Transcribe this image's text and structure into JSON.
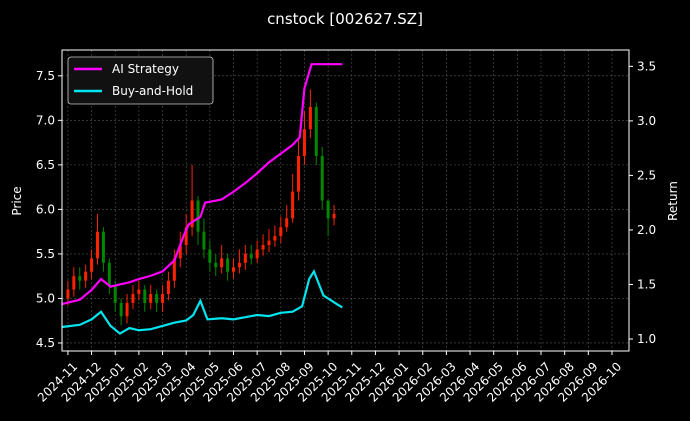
{
  "chart_data": {
    "type": "candlestick",
    "title": "cnstock [002627.SZ]",
    "ylabel": "Price",
    "y2label": "Return",
    "grid": true,
    "legend": "upper left",
    "up_color": "#ff2200",
    "down_color": "#008800",
    "xlim": [
      -0.25,
      23.72
    ],
    "xticks": [
      {
        "value": 0,
        "label": "2024-11"
      },
      {
        "value": 1,
        "label": "2024-12"
      },
      {
        "value": 2,
        "label": "2025-01"
      },
      {
        "value": 3,
        "label": "2025-02"
      },
      {
        "value": 4,
        "label": "2025-03"
      },
      {
        "value": 5,
        "label": "2025-04"
      },
      {
        "value": 6,
        "label": "2025-05"
      },
      {
        "value": 7,
        "label": "2025-06"
      },
      {
        "value": 8,
        "label": "2025-07"
      },
      {
        "value": 9,
        "label": "2025-08"
      },
      {
        "value": 10,
        "label": "2025-09"
      },
      {
        "value": 11,
        "label": "2025-10"
      },
      {
        "value": 12,
        "label": "2025-11"
      },
      {
        "value": 13,
        "label": "2025-12"
      },
      {
        "value": 14,
        "label": "2026-01"
      },
      {
        "value": 15,
        "label": "2026-02"
      },
      {
        "value": 16,
        "label": "2026-03"
      },
      {
        "value": 17,
        "label": "2026-04"
      },
      {
        "value": 18,
        "label": "2026-05"
      },
      {
        "value": 19,
        "label": "2026-06"
      },
      {
        "value": 20,
        "label": "2026-07"
      },
      {
        "value": 21,
        "label": "2026-08"
      },
      {
        "value": 22,
        "label": "2026-09"
      },
      {
        "value": 23,
        "label": "2026-10"
      }
    ],
    "ylim": [
      4.41,
      7.79
    ],
    "yticks": [
      4.5,
      {
        "value": 5,
        "label": "5.0"
      },
      5.5,
      {
        "value": 6,
        "label": "6.0"
      },
      6.5,
      {
        "value": 7,
        "label": "7.0"
      },
      7.5
    ],
    "y2lim": [
      0.89,
      3.65
    ],
    "y2ticks": [
      {
        "value": 1,
        "label": "1.0"
      },
      1.5,
      {
        "value": 2,
        "label": "2.0"
      },
      2.5,
      {
        "value": 3,
        "label": "3.0"
      },
      3.5
    ],
    "candles": {
      "x": [
        0,
        0.25,
        0.5,
        0.75,
        1,
        1.25,
        1.5,
        1.75,
        2,
        2.25,
        2.5,
        2.75,
        3,
        3.25,
        3.5,
        3.75,
        4,
        4.25,
        4.5,
        4.75,
        5,
        5.25,
        5.5,
        5.75,
        6,
        6.25,
        6.5,
        6.75,
        7,
        7.25,
        7.5,
        7.75,
        8,
        8.25,
        8.5,
        8.75,
        9,
        9.25,
        9.5,
        9.75,
        10,
        10.25,
        10.5,
        10.75,
        11,
        11.25
      ],
      "open": [
        5.0,
        5.1,
        5.25,
        5.2,
        5.3,
        5.45,
        5.75,
        5.4,
        5.15,
        4.95,
        4.8,
        4.95,
        5.05,
        5.1,
        4.95,
        5.05,
        4.95,
        5.05,
        5.2,
        5.45,
        5.6,
        5.8,
        6.1,
        5.75,
        5.55,
        5.4,
        5.35,
        5.45,
        5.3,
        5.35,
        5.4,
        5.5,
        5.45,
        5.55,
        5.6,
        5.65,
        5.7,
        5.8,
        5.9,
        6.2,
        6.6,
        6.9,
        7.15,
        6.6,
        6.1,
        5.9
      ],
      "close": [
        5.1,
        5.25,
        5.2,
        5.3,
        5.45,
        5.75,
        5.4,
        5.15,
        4.95,
        4.8,
        4.95,
        5.05,
        5.1,
        4.95,
        5.05,
        4.95,
        5.05,
        5.2,
        5.45,
        5.6,
        5.8,
        6.1,
        5.75,
        5.55,
        5.4,
        5.35,
        5.45,
        5.3,
        5.35,
        5.4,
        5.5,
        5.45,
        5.55,
        5.6,
        5.65,
        5.7,
        5.8,
        5.9,
        6.2,
        6.6,
        6.9,
        7.15,
        6.6,
        6.1,
        5.9,
        5.95
      ],
      "high": [
        5.2,
        5.35,
        5.35,
        5.38,
        5.55,
        5.95,
        5.8,
        5.45,
        5.2,
        5.0,
        5.05,
        5.15,
        5.2,
        5.15,
        5.15,
        5.1,
        5.15,
        5.3,
        5.55,
        5.75,
        5.95,
        6.5,
        6.15,
        5.9,
        5.65,
        5.5,
        5.6,
        5.5,
        5.45,
        5.55,
        5.6,
        5.6,
        5.65,
        5.72,
        5.78,
        5.82,
        5.92,
        6.05,
        6.4,
        6.8,
        7.1,
        7.35,
        7.2,
        6.7,
        6.1,
        6.05
      ],
      "low": [
        4.92,
        5.02,
        5.1,
        5.12,
        5.22,
        5.38,
        5.3,
        5.05,
        4.85,
        4.7,
        4.72,
        4.88,
        4.98,
        4.85,
        4.88,
        4.85,
        4.85,
        4.98,
        5.12,
        5.35,
        5.5,
        5.7,
        5.6,
        5.45,
        5.3,
        5.25,
        5.28,
        5.2,
        5.22,
        5.28,
        5.32,
        5.38,
        5.4,
        5.48,
        5.52,
        5.58,
        5.62,
        5.75,
        5.85,
        6.1,
        6.5,
        6.8,
        6.5,
        6.0,
        5.7,
        5.82
      ]
    },
    "series": [
      {
        "name": "AI Strategy",
        "color": "#ff00ff",
        "axis": "y2",
        "x": [
          -0.25,
          0.5,
          1.0,
          1.4,
          1.8,
          2.2,
          2.6,
          3.0,
          3.5,
          4.0,
          4.5,
          4.9,
          5.1,
          5.6,
          5.8,
          6.5,
          7.0,
          7.5,
          8.0,
          8.5,
          9.0,
          9.5,
          9.8,
          10.0,
          10.3,
          11.6
        ],
        "values": [
          1.32,
          1.36,
          1.45,
          1.55,
          1.48,
          1.5,
          1.52,
          1.55,
          1.58,
          1.62,
          1.72,
          1.95,
          2.05,
          2.12,
          2.25,
          2.28,
          2.35,
          2.43,
          2.52,
          2.62,
          2.7,
          2.78,
          2.85,
          3.3,
          3.52,
          3.52
        ]
      },
      {
        "name": "Buy-and-Hold",
        "color": "#00e5ee",
        "axis": "y2",
        "x": [
          -0.25,
          0.5,
          1.0,
          1.4,
          1.8,
          2.2,
          2.6,
          3.0,
          3.5,
          4.0,
          4.5,
          5.0,
          5.3,
          5.6,
          5.9,
          6.5,
          7.0,
          7.5,
          8.0,
          8.5,
          9.0,
          9.5,
          9.9,
          10.2,
          10.4,
          10.8,
          11.3,
          11.6
        ],
        "values": [
          1.11,
          1.13,
          1.18,
          1.25,
          1.12,
          1.05,
          1.1,
          1.08,
          1.09,
          1.12,
          1.15,
          1.17,
          1.22,
          1.35,
          1.18,
          1.19,
          1.18,
          1.2,
          1.22,
          1.21,
          1.24,
          1.25,
          1.3,
          1.55,
          1.62,
          1.4,
          1.33,
          1.29
        ]
      }
    ]
  }
}
